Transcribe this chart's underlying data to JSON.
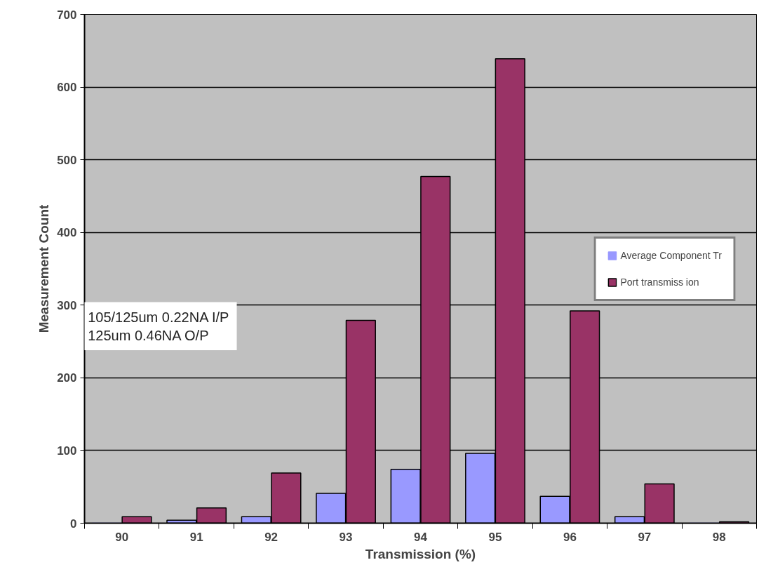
{
  "chart_data": {
    "type": "bar",
    "xlabel": "Transmission (%)",
    "ylabel": "Measurement Count",
    "categories": [
      "90",
      "91",
      "92",
      "93",
      "94",
      "95",
      "96",
      "97",
      "98"
    ],
    "series": [
      {
        "name": "Average Component Tr",
        "color": "#9999ff",
        "values": [
          0,
          4,
          9,
          41,
          74,
          96,
          37,
          9,
          0
        ]
      },
      {
        "name": "Port transmiss ion",
        "color": "#993366",
        "values": [
          9,
          21,
          69,
          279,
          477,
          639,
          292,
          54,
          2
        ]
      }
    ],
    "ylim": [
      0,
      700
    ],
    "yticks": [
      0,
      100,
      200,
      300,
      400,
      500,
      600,
      700
    ],
    "grid": "y",
    "legend": "right",
    "annotations": [
      "105/125um 0.22NA I/P\n125um 0.46NA O/P"
    ]
  }
}
